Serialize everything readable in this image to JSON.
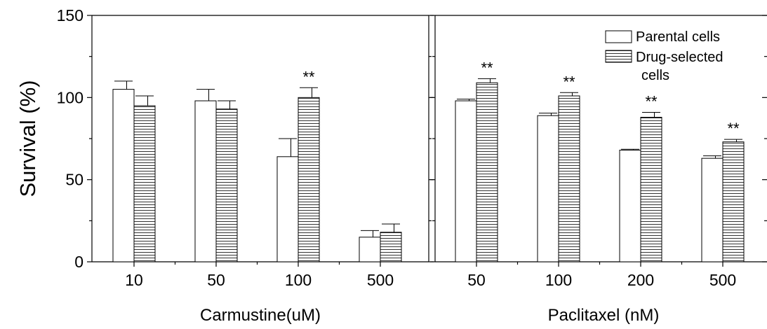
{
  "chart_data": [
    {
      "type": "bar",
      "xlabel": "Carmustine(uM)",
      "ylabel": "Survival (%)",
      "ylim": [
        0,
        150
      ],
      "yticks": [
        0,
        50,
        100,
        150
      ],
      "categories": [
        "10",
        "50",
        "100",
        "500"
      ],
      "series": [
        {
          "name": "Parental cells",
          "values": [
            105,
            98,
            64,
            15
          ],
          "errors": [
            5,
            7,
            11,
            4
          ]
        },
        {
          "name": "Drug-selected cells",
          "values": [
            95,
            93,
            100,
            18
          ],
          "errors": [
            6,
            5,
            6,
            5
          ]
        }
      ],
      "annotations": [
        {
          "category": "100",
          "series": 1,
          "text": "**"
        }
      ]
    },
    {
      "type": "bar",
      "xlabel": "Paclitaxel (nM)",
      "ylim": [
        0,
        150
      ],
      "categories": [
        "50",
        "100",
        "200",
        "500"
      ],
      "series": [
        {
          "name": "Parental cells",
          "values": [
            98,
            89,
            68,
            63
          ],
          "errors": [
            1,
            1.5,
            0.5,
            1.5
          ]
        },
        {
          "name": "Drug-selected cells",
          "values": [
            109,
            101,
            88,
            73
          ],
          "errors": [
            2.5,
            2,
            3,
            1.5
          ]
        }
      ],
      "annotations": [
        {
          "category": "50",
          "series": 1,
          "text": "**"
        },
        {
          "category": "100",
          "series": 1,
          "text": "**"
        },
        {
          "category": "200",
          "series": 1,
          "text": "**"
        },
        {
          "category": "500",
          "series": 1,
          "text": "**"
        }
      ],
      "legend": {
        "position": "top-right",
        "entries": [
          {
            "label": "Parental cells",
            "pattern": "open"
          },
          {
            "label": "Drug-selected",
            "label2": "cells",
            "pattern": "horizontal-stripes"
          }
        ]
      }
    }
  ]
}
